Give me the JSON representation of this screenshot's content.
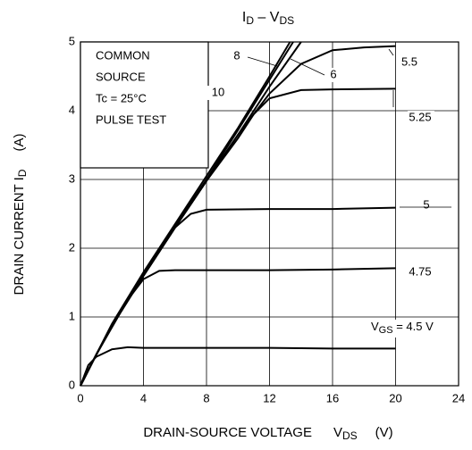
{
  "chart_data": {
    "type": "line",
    "title": [
      "I",
      "D",
      " – V",
      "DS"
    ],
    "y_label": [
      "DRAIN CURRENT   I",
      "D",
      "(A)"
    ],
    "x_label": [
      "DRAIN-SOURCE VOLTAGE",
      "V",
      "DS",
      "(V)"
    ],
    "note": [
      "COMMON",
      "SOURCE",
      "Tc = 25°C",
      "PULSE TEST"
    ],
    "xlim": [
      0,
      24
    ],
    "ylim": [
      0,
      5
    ],
    "xticks": [
      0,
      4,
      8,
      12,
      16,
      20,
      24
    ],
    "yticks": [
      0,
      1,
      2,
      3,
      4,
      5
    ],
    "grid": true,
    "color": "#000000",
    "series": [
      {
        "name": "10",
        "x": [
          0,
          1,
          2,
          4,
          6,
          8,
          10,
          12,
          13.3
        ],
        "values": [
          0,
          0.45,
          0.9,
          1.65,
          2.35,
          3.05,
          3.75,
          4.5,
          5
        ]
      },
      {
        "name": "8",
        "x": [
          0,
          1,
          2,
          4,
          6,
          8,
          10,
          12,
          13.5
        ],
        "values": [
          0,
          0.45,
          0.88,
          1.62,
          2.32,
          3.0,
          3.72,
          4.45,
          5
        ]
      },
      {
        "name": "6",
        "x": [
          0,
          1,
          2,
          4,
          6,
          8,
          10,
          12,
          14
        ],
        "values": [
          0,
          0.45,
          0.87,
          1.6,
          2.3,
          2.98,
          3.65,
          4.35,
          5
        ]
      },
      {
        "name": "5.5",
        "x": [
          0,
          1,
          2,
          4,
          6,
          8,
          10,
          12,
          14,
          16,
          18,
          20
        ],
        "values": [
          0,
          0.45,
          0.87,
          1.6,
          2.3,
          2.98,
          3.65,
          4.25,
          4.68,
          4.88,
          4.92,
          4.94
        ]
      },
      {
        "name": "5.25",
        "x": [
          0,
          1,
          2,
          4,
          6,
          8,
          10,
          11,
          12,
          14,
          16,
          20
        ],
        "values": [
          0,
          0.45,
          0.87,
          1.6,
          2.3,
          2.98,
          3.6,
          3.95,
          4.18,
          4.3,
          4.31,
          4.32
        ]
      },
      {
        "name": "5",
        "x": [
          0,
          1,
          2,
          4,
          6,
          7,
          8,
          12,
          16,
          20
        ],
        "values": [
          0,
          0.45,
          0.87,
          1.6,
          2.3,
          2.5,
          2.56,
          2.57,
          2.57,
          2.59
        ]
      },
      {
        "name": "4.75",
        "x": [
          0,
          1,
          2,
          3,
          4,
          5,
          6,
          8,
          12,
          16,
          20
        ],
        "values": [
          0,
          0.45,
          0.85,
          1.25,
          1.55,
          1.67,
          1.68,
          1.68,
          1.68,
          1.69,
          1.71
        ]
      },
      {
        "name_parts": [
          "V",
          "GS",
          " = 4.5 V"
        ],
        "x": [
          0,
          0.5,
          1,
          2,
          3,
          4,
          8,
          12,
          16,
          20
        ],
        "values": [
          0,
          0.3,
          0.42,
          0.53,
          0.56,
          0.55,
          0.55,
          0.55,
          0.54,
          0.54
        ]
      }
    ]
  }
}
